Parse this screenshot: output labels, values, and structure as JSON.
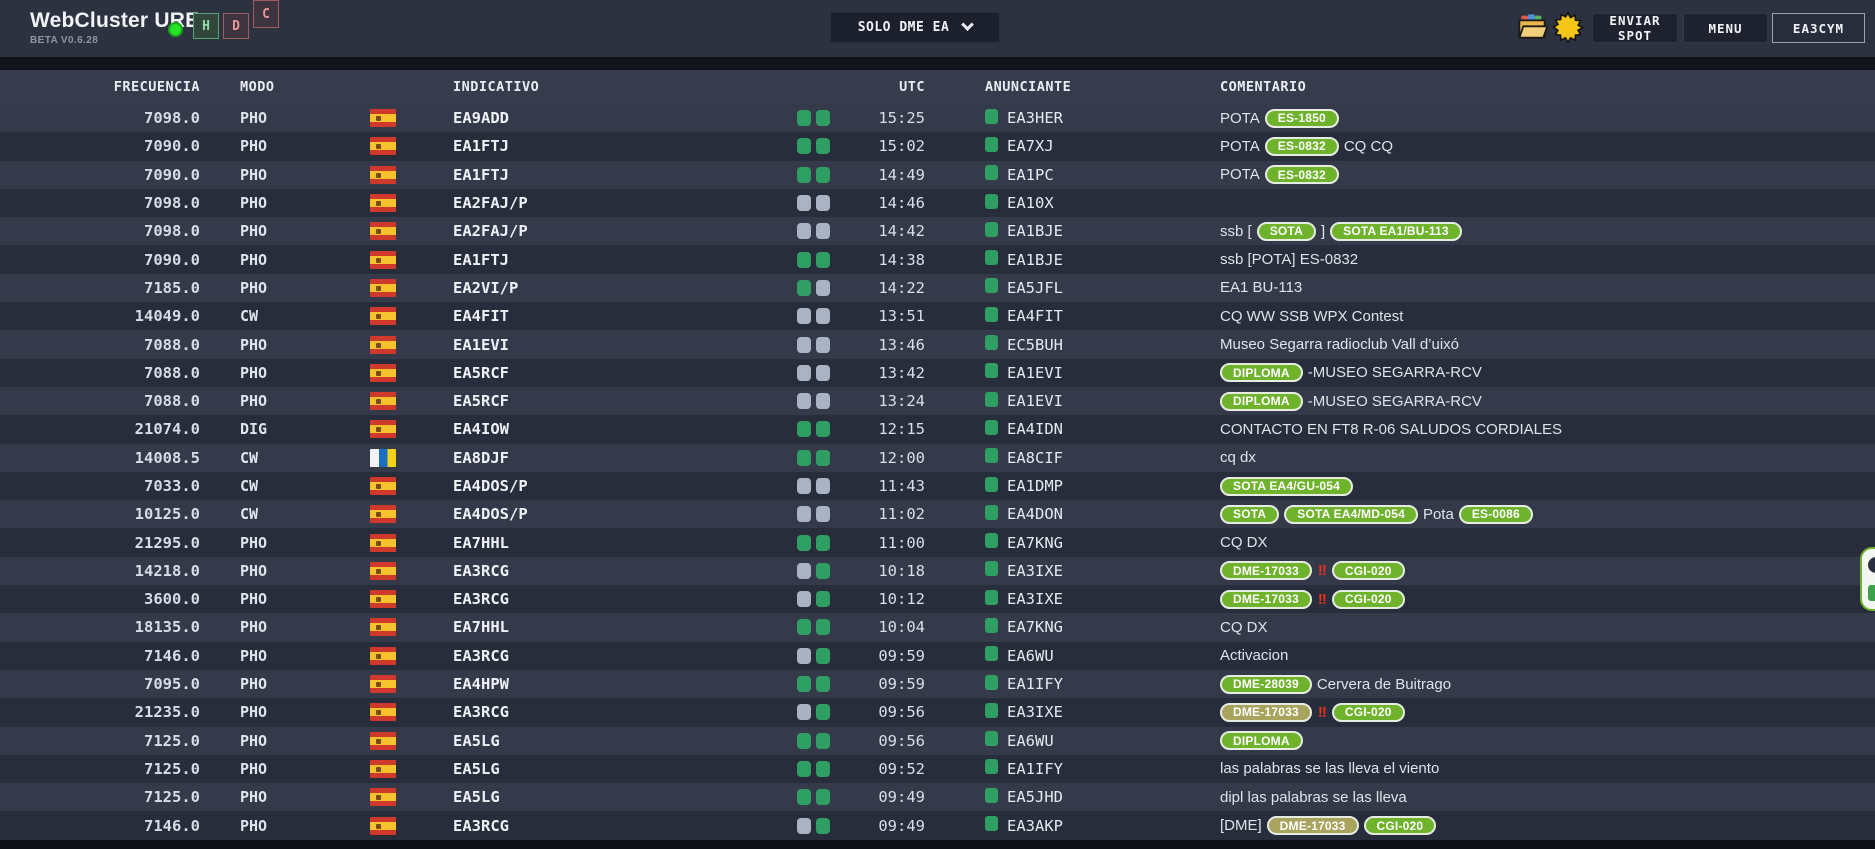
{
  "colors": {
    "background": "#2d3240",
    "row_odd": "#343a49",
    "row_even": "#272d3b",
    "header_band": "#363c4b",
    "indicator_green": "#2f9e63",
    "indicator_gray": "#a9b3c4",
    "pill_green": "#6fb32c",
    "pill_olive": "#a8a35d",
    "status_ok_green": "#26e426",
    "alert_red": "#e8321c"
  },
  "header": {
    "title": "WebCluster URE",
    "subtitle": "BETA V0.6.28",
    "status_boxes": [
      {
        "label": "H",
        "state": "ok"
      },
      {
        "label": "D",
        "state": "error"
      },
      {
        "label": "C",
        "state": "error"
      }
    ],
    "filter_selected": "SOLO DME EA",
    "icons": [
      "folder-icon",
      "sun-icon"
    ],
    "buttons": {
      "enviar": "ENVIAR SPOT",
      "menu": "MENU",
      "user": "EA3CYM"
    }
  },
  "table": {
    "columns": [
      "FRECUENCIA",
      "MODO",
      "INDICATIVO",
      "UTC",
      "ANUNCIANTE",
      "COMENTARIO"
    ],
    "rows": [
      {
        "freq": "7098.0",
        "mode": "PHO",
        "flag": "es",
        "call": "EA9ADD",
        "ind": [
          "g",
          "g"
        ],
        "utc": "15:25",
        "spotter": "EA3HER",
        "comment": [
          {
            "t": "text",
            "v": "POTA "
          },
          {
            "t": "pill",
            "v": "ES-1850"
          }
        ]
      },
      {
        "freq": "7090.0",
        "mode": "PHO",
        "flag": "es",
        "call": "EA1FTJ",
        "ind": [
          "g",
          "g"
        ],
        "utc": "15:02",
        "spotter": "EA7XJ",
        "comment": [
          {
            "t": "text",
            "v": "POTA "
          },
          {
            "t": "pill",
            "v": "ES-0832"
          },
          {
            "t": "text",
            "v": " CQ CQ"
          }
        ]
      },
      {
        "freq": "7090.0",
        "mode": "PHO",
        "flag": "es",
        "call": "EA1FTJ",
        "ind": [
          "g",
          "g"
        ],
        "utc": "14:49",
        "spotter": "EA1PC",
        "comment": [
          {
            "t": "text",
            "v": "POTA "
          },
          {
            "t": "pill",
            "v": "ES-0832"
          }
        ]
      },
      {
        "freq": "7098.0",
        "mode": "PHO",
        "flag": "es",
        "call": "EA2FAJ/P",
        "ind": [
          "x",
          "x"
        ],
        "utc": "14:46",
        "spotter": "EA10X",
        "comment": []
      },
      {
        "freq": "7098.0",
        "mode": "PHO",
        "flag": "es",
        "call": "EA2FAJ/P",
        "ind": [
          "x",
          "x"
        ],
        "utc": "14:42",
        "spotter": "EA1BJE",
        "comment": [
          {
            "t": "text",
            "v": "ssb ["
          },
          {
            "t": "pill",
            "v": "SOTA"
          },
          {
            "t": "text",
            "v": "] "
          },
          {
            "t": "pill",
            "v": "SOTA EA1/BU-113"
          }
        ]
      },
      {
        "freq": "7090.0",
        "mode": "PHO",
        "flag": "es",
        "call": "EA1FTJ",
        "ind": [
          "g",
          "g"
        ],
        "utc": "14:38",
        "spotter": "EA1BJE",
        "comment": [
          {
            "t": "text",
            "v": "ssb [POTA] ES-0832"
          }
        ]
      },
      {
        "freq": "7185.0",
        "mode": "PHO",
        "flag": "es",
        "call": "EA2VI/P",
        "ind": [
          "g",
          "x"
        ],
        "utc": "14:22",
        "spotter": "EA5JFL",
        "comment": [
          {
            "t": "text",
            "v": "EA1 BU-113"
          }
        ]
      },
      {
        "freq": "14049.0",
        "mode": "CW",
        "flag": "es",
        "call": "EA4FIT",
        "ind": [
          "x",
          "x"
        ],
        "utc": "13:51",
        "spotter": "EA4FIT",
        "comment": [
          {
            "t": "text",
            "v": "CQ WW SSB WPX Contest"
          }
        ]
      },
      {
        "freq": "7088.0",
        "mode": "PHO",
        "flag": "es",
        "call": "EA1EVI",
        "ind": [
          "x",
          "x"
        ],
        "utc": "13:46",
        "spotter": "EC5BUH",
        "comment": [
          {
            "t": "text",
            "v": "Museo Segarra radioclub Vall d’uixó"
          }
        ]
      },
      {
        "freq": "7088.0",
        "mode": "PHO",
        "flag": "es",
        "call": "EA5RCF",
        "ind": [
          "x",
          "x"
        ],
        "utc": "13:42",
        "spotter": "EA1EVI",
        "comment": [
          {
            "t": "pill",
            "v": "DIPLOMA"
          },
          {
            "t": "text",
            "v": "-MUSEO SEGARRA-RCV"
          }
        ]
      },
      {
        "freq": "7088.0",
        "mode": "PHO",
        "flag": "es",
        "call": "EA5RCF",
        "ind": [
          "x",
          "x"
        ],
        "utc": "13:24",
        "spotter": "EA1EVI",
        "comment": [
          {
            "t": "pill",
            "v": "DIPLOMA"
          },
          {
            "t": "text",
            "v": "-MUSEO SEGARRA-RCV"
          }
        ]
      },
      {
        "freq": "21074.0",
        "mode": "DIG",
        "flag": "es",
        "call": "EA4IOW",
        "ind": [
          "g",
          "g"
        ],
        "utc": "12:15",
        "spotter": "EA4IDN",
        "comment": [
          {
            "t": "text",
            "v": "CONTACTO EN FT8 R-06 SALUDOS CORDIALES"
          }
        ]
      },
      {
        "freq": "14008.5",
        "mode": "CW",
        "flag": "canary",
        "call": "EA8DJF",
        "ind": [
          "g",
          "g"
        ],
        "utc": "12:00",
        "spotter": "EA8CIF",
        "comment": [
          {
            "t": "text",
            "v": "cq dx"
          }
        ]
      },
      {
        "freq": "7033.0",
        "mode": "CW",
        "flag": "es",
        "call": "EA4DOS/P",
        "ind": [
          "x",
          "x"
        ],
        "utc": "11:43",
        "spotter": "EA1DMP",
        "comment": [
          {
            "t": "pill",
            "v": "SOTA EA4/GU-054"
          }
        ]
      },
      {
        "freq": "10125.0",
        "mode": "CW",
        "flag": "es",
        "call": "EA4DOS/P",
        "ind": [
          "x",
          "x"
        ],
        "utc": "11:02",
        "spotter": "EA4DON",
        "comment": [
          {
            "t": "pill",
            "v": "SOTA"
          },
          {
            "t": "pill",
            "v": "SOTA EA4/MD-054"
          },
          {
            "t": "text",
            "v": " Pota "
          },
          {
            "t": "pill",
            "v": "ES-0086"
          }
        ]
      },
      {
        "freq": "21295.0",
        "mode": "PHO",
        "flag": "es",
        "call": "EA7HHL",
        "ind": [
          "g",
          "g"
        ],
        "utc": "11:00",
        "spotter": "EA7KNG",
        "comment": [
          {
            "t": "text",
            "v": "CQ DX"
          }
        ]
      },
      {
        "freq": "14218.0",
        "mode": "PHO",
        "flag": "es",
        "call": "EA3RCG",
        "ind": [
          "x",
          "g"
        ],
        "utc": "10:18",
        "spotter": "EA3IXE",
        "comment": [
          {
            "t": "pill",
            "v": "DME-17033"
          },
          {
            "t": "excl",
            "v": "!!"
          },
          {
            "t": "pill",
            "v": "CGI-020"
          }
        ]
      },
      {
        "freq": "3600.0",
        "mode": "PHO",
        "flag": "es",
        "call": "EA3RCG",
        "ind": [
          "x",
          "g"
        ],
        "utc": "10:12",
        "spotter": "EA3IXE",
        "comment": [
          {
            "t": "pill",
            "v": "DME-17033"
          },
          {
            "t": "excl",
            "v": "!!"
          },
          {
            "t": "pill",
            "v": "CGI-020"
          }
        ]
      },
      {
        "freq": "18135.0",
        "mode": "PHO",
        "flag": "es",
        "call": "EA7HHL",
        "ind": [
          "g",
          "g"
        ],
        "utc": "10:04",
        "spotter": "EA7KNG",
        "comment": [
          {
            "t": "text",
            "v": "CQ DX"
          }
        ]
      },
      {
        "freq": "7146.0",
        "mode": "PHO",
        "flag": "es",
        "call": "EA3RCG",
        "ind": [
          "x",
          "g"
        ],
        "utc": "09:59",
        "spotter": "EA6WU",
        "comment": [
          {
            "t": "text",
            "v": "Activacion"
          }
        ]
      },
      {
        "freq": "7095.0",
        "mode": "PHO",
        "flag": "es",
        "call": "EA4HPW",
        "ind": [
          "g",
          "g"
        ],
        "utc": "09:59",
        "spotter": "EA1IFY",
        "comment": [
          {
            "t": "pill",
            "v": "DME-28039"
          },
          {
            "t": "text",
            "v": " Cervera de Buitrago"
          }
        ]
      },
      {
        "freq": "21235.0",
        "mode": "PHO",
        "flag": "es",
        "call": "EA3RCG",
        "ind": [
          "x",
          "g"
        ],
        "utc": "09:56",
        "spotter": "EA3IXE",
        "comment": [
          {
            "t": "pill-olive",
            "v": "DME-17033"
          },
          {
            "t": "excl",
            "v": "!!"
          },
          {
            "t": "pill",
            "v": "CGI-020"
          }
        ]
      },
      {
        "freq": "7125.0",
        "mode": "PHO",
        "flag": "es",
        "call": "EA5LG",
        "ind": [
          "g",
          "g"
        ],
        "utc": "09:56",
        "spotter": "EA6WU",
        "comment": [
          {
            "t": "pill",
            "v": "DIPLOMA"
          }
        ]
      },
      {
        "freq": "7125.0",
        "mode": "PHO",
        "flag": "es",
        "call": "EA5LG",
        "ind": [
          "g",
          "g"
        ],
        "utc": "09:52",
        "spotter": "EA1IFY",
        "comment": [
          {
            "t": "text",
            "v": "las palabras se las lleva el viento"
          }
        ]
      },
      {
        "freq": "7125.0",
        "mode": "PHO",
        "flag": "es",
        "call": "EA5LG",
        "ind": [
          "g",
          "g"
        ],
        "utc": "09:49",
        "spotter": "EA5JHD",
        "comment": [
          {
            "t": "text",
            "v": "dipl las palabras se las lleva"
          }
        ]
      },
      {
        "freq": "7146.0",
        "mode": "PHO",
        "flag": "es",
        "call": "EA3RCG",
        "ind": [
          "x",
          "g"
        ],
        "utc": "09:49",
        "spotter": "EA3AKP",
        "comment": [
          {
            "t": "text",
            "v": "[DME] "
          },
          {
            "t": "pill-olive",
            "v": "DME-17033"
          },
          {
            "t": "pill",
            "v": "CGI-020"
          }
        ]
      }
    ]
  }
}
